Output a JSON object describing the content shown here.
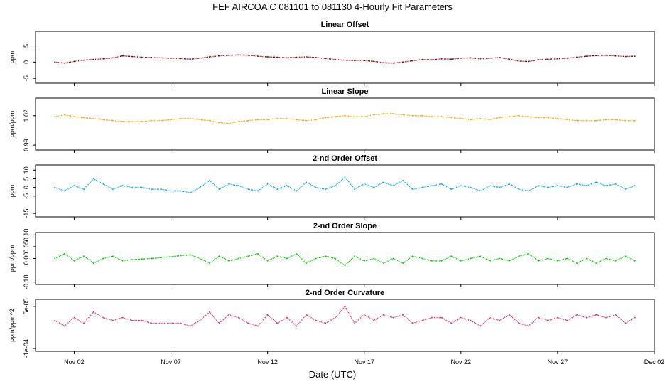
{
  "main_title": "FEF   AIRCOA C   081101 to 081130   4-Hourly Fit Parameters",
  "xlabel": "Date (UTC)",
  "x_ticks": [
    {
      "day": 2,
      "label": "Nov 02"
    },
    {
      "day": 7,
      "label": "Nov 07"
    },
    {
      "day": 12,
      "label": "Nov 12"
    },
    {
      "day": 17,
      "label": "Nov 17"
    },
    {
      "day": 22,
      "label": "Nov 22"
    },
    {
      "day": 27,
      "label": "Nov 27"
    },
    {
      "day": 32,
      "label": "Dec 02"
    }
  ],
  "chart_data": [
    {
      "type": "line",
      "title": "Linear Offset",
      "ylabel": "ppm",
      "color": "#8b0000",
      "xlim": [
        "2008-10-31",
        "2008-12-02"
      ],
      "ylim": [
        -6.5,
        9.5
      ],
      "yticks": [
        {
          "v": -5,
          "label": "-5"
        },
        {
          "v": 0,
          "label": "0"
        },
        {
          "v": 5,
          "label": "5"
        }
      ],
      "x": [
        1,
        1.5,
        2,
        2.5,
        3,
        3.5,
        4,
        4.5,
        5,
        5.5,
        6,
        6.5,
        7,
        7.5,
        8,
        8.5,
        9,
        9.5,
        10,
        10.5,
        11,
        11.5,
        12,
        12.5,
        13,
        13.5,
        14,
        14.5,
        15,
        15.5,
        16,
        16.5,
        17,
        17.5,
        18,
        18.5,
        19,
        19.5,
        20,
        20.5,
        21,
        21.5,
        22,
        22.5,
        23,
        23.5,
        24,
        24.5,
        25,
        25.5,
        26,
        26.5,
        27,
        27.5,
        28,
        28.5,
        29,
        29.5,
        30,
        30.5,
        31
      ],
      "values": [
        0.0,
        -0.3,
        0.2,
        0.6,
        0.8,
        1.0,
        1.3,
        1.9,
        1.7,
        1.5,
        1.4,
        1.3,
        1.2,
        1.1,
        0.9,
        1.2,
        1.6,
        1.9,
        2.1,
        2.2,
        2.1,
        1.8,
        1.6,
        1.5,
        1.3,
        1.5,
        1.6,
        1.4,
        1.1,
        0.8,
        0.6,
        0.5,
        0.5,
        0.2,
        -0.2,
        -0.3,
        0.0,
        0.4,
        0.8,
        0.7,
        1.0,
        0.9,
        1.2,
        1.3,
        1.0,
        1.2,
        1.4,
        0.9,
        0.3,
        0.2,
        0.7,
        0.9,
        1.0,
        1.2,
        1.5,
        1.8,
        2.0,
        2.1,
        1.9,
        1.7,
        1.8
      ]
    },
    {
      "type": "line",
      "title": "Linear Slope",
      "ylabel": "ppm/ppm",
      "color": "#ffa500",
      "xlim": [
        "2008-10-31",
        "2008-12-02"
      ],
      "ylim": [
        0.985,
        1.038
      ],
      "yticks": [
        {
          "v": 0.99,
          "label": "0.99"
        },
        {
          "v": 1.02,
          "label": "1.02"
        }
      ],
      "x": [
        1,
        1.5,
        2,
        2.5,
        3,
        3.5,
        4,
        4.5,
        5,
        5.5,
        6,
        6.5,
        7,
        7.5,
        8,
        8.5,
        9,
        9.5,
        10,
        10.5,
        11,
        11.5,
        12,
        12.5,
        13,
        13.5,
        14,
        14.5,
        15,
        15.5,
        16,
        16.5,
        17,
        17.5,
        18,
        18.5,
        19,
        19.5,
        20,
        20.5,
        21,
        21.5,
        22,
        22.5,
        23,
        23.5,
        24,
        24.5,
        25,
        25.5,
        26,
        26.5,
        27,
        27.5,
        28,
        28.5,
        29,
        29.5,
        30,
        30.5,
        31
      ],
      "values": [
        1.019,
        1.021,
        1.019,
        1.018,
        1.017,
        1.016,
        1.015,
        1.014,
        1.014,
        1.014,
        1.015,
        1.015,
        1.016,
        1.017,
        1.017,
        1.016,
        1.015,
        1.013,
        1.012,
        1.014,
        1.015,
        1.016,
        1.016,
        1.017,
        1.017,
        1.016,
        1.015,
        1.016,
        1.018,
        1.019,
        1.02,
        1.019,
        1.019,
        1.021,
        1.022,
        1.022,
        1.021,
        1.02,
        1.02,
        1.019,
        1.019,
        1.018,
        1.017,
        1.016,
        1.017,
        1.016,
        1.018,
        1.019,
        1.02,
        1.019,
        1.018,
        1.018,
        1.017,
        1.016,
        1.015,
        1.015,
        1.015,
        1.016,
        1.016,
        1.015,
        1.015
      ]
    },
    {
      "type": "line",
      "title": "2-nd Order Offset",
      "ylabel": "ppm",
      "color": "#00aaee",
      "xlim": [
        "2008-10-31",
        "2008-12-02"
      ],
      "ylim": [
        -17,
        13
      ],
      "yticks": [
        {
          "v": -15,
          "label": "-15"
        },
        {
          "v": -5,
          "label": "-5"
        },
        {
          "v": 0,
          "label": "0"
        },
        {
          "v": 5,
          "label": "5"
        },
        {
          "v": 10,
          "label": "10"
        }
      ],
      "x": [
        1,
        1.5,
        2,
        2.5,
        3,
        3.5,
        4,
        4.5,
        5,
        5.5,
        6,
        6.5,
        7,
        7.5,
        8,
        8.5,
        9,
        9.5,
        10,
        10.5,
        11,
        11.5,
        12,
        12.5,
        13,
        13.5,
        14,
        14.5,
        15,
        15.5,
        16,
        16.5,
        17,
        17.5,
        18,
        18.5,
        19,
        19.5,
        20,
        20.5,
        21,
        21.5,
        22,
        22.5,
        23,
        23.5,
        24,
        24.5,
        25,
        25.5,
        26,
        26.5,
        27,
        27.5,
        28,
        28.5,
        29,
        29.5,
        30,
        30.5,
        31
      ],
      "values": [
        0,
        -2,
        1,
        -1,
        5,
        2,
        -1,
        1,
        0,
        0,
        -1,
        -1,
        -2,
        -2,
        -3,
        0,
        4,
        -1,
        2,
        1,
        -1,
        -2,
        2,
        -1,
        1,
        -2,
        3,
        0,
        -1,
        1,
        6,
        -1,
        2,
        0,
        3,
        1,
        4,
        -1,
        0,
        1,
        2,
        -1,
        1,
        0,
        -2,
        1,
        0,
        2,
        -1,
        -2,
        1,
        0,
        1,
        0,
        2,
        1,
        3,
        1,
        2,
        -1,
        1
      ]
    },
    {
      "type": "line",
      "title": "2-nd Order Slope",
      "ylabel": "ppm/ppm",
      "color": "#00cc00",
      "xlim": [
        "2008-10-31",
        "2008-12-02"
      ],
      "ylim": [
        -0.11,
        0.11
      ],
      "yticks": [
        {
          "v": -0.1,
          "label": "-0.10"
        },
        {
          "v": 0.0,
          "label": "0.00"
        },
        {
          "v": 0.05,
          "label": "0.05"
        },
        {
          "v": 0.1,
          "label": "0.10"
        }
      ],
      "x": [
        1,
        1.5,
        2,
        2.5,
        3,
        3.5,
        4,
        4.5,
        5,
        5.5,
        6,
        6.5,
        7,
        7.5,
        8,
        8.5,
        9,
        9.5,
        10,
        10.5,
        11,
        11.5,
        12,
        12.5,
        13,
        13.5,
        14,
        14.5,
        15,
        15.5,
        16,
        16.5,
        17,
        17.5,
        18,
        18.5,
        19,
        19.5,
        20,
        20.5,
        21,
        21.5,
        22,
        22.5,
        23,
        23.5,
        24,
        24.5,
        25,
        25.5,
        26,
        26.5,
        27,
        27.5,
        28,
        28.5,
        29,
        29.5,
        30,
        30.5,
        31
      ],
      "values": [
        0.0,
        0.02,
        -0.01,
        0.01,
        -0.02,
        0.0,
        0.01,
        -0.01,
        -0.005,
        -0.002,
        0.0,
        0.004,
        0.008,
        0.012,
        0.016,
        0.0,
        -0.02,
        0.01,
        -0.01,
        0.0,
        0.01,
        0.02,
        -0.01,
        0.01,
        0.0,
        0.02,
        -0.02,
        0.0,
        0.01,
        0.0,
        -0.03,
        0.01,
        -0.01,
        0.0,
        -0.02,
        0.0,
        -0.02,
        0.01,
        0.0,
        -0.01,
        -0.01,
        0.01,
        -0.01,
        0.0,
        0.01,
        -0.01,
        0.0,
        -0.01,
        0.01,
        0.02,
        -0.01,
        0.0,
        -0.01,
        0.0,
        -0.02,
        0.0,
        -0.02,
        0.0,
        -0.01,
        0.01,
        -0.01
      ]
    },
    {
      "type": "line",
      "title": "2-nd Order Curvature",
      "ylabel": "ppm/ppm^2",
      "color": "#e0306a",
      "xlim": [
        "2008-10-31",
        "2008-12-02"
      ],
      "ylim": [
        -0.00011,
        7.5e-05
      ],
      "yticks": [
        {
          "v": -0.0001,
          "label": "-1e-04"
        },
        {
          "v": 5e-05,
          "label": "5e-05"
        }
      ],
      "x": [
        1,
        1.5,
        2,
        2.5,
        3,
        3.5,
        4,
        4.5,
        5,
        5.5,
        6,
        6.5,
        7,
        7.5,
        8,
        8.5,
        9,
        9.5,
        10,
        10.5,
        11,
        11.5,
        12,
        12.5,
        13,
        13.5,
        14,
        14.5,
        15,
        15.5,
        16,
        16.5,
        17,
        17.5,
        18,
        18.5,
        19,
        19.5,
        20,
        20.5,
        21,
        21.5,
        22,
        22.5,
        23,
        23.5,
        24,
        24.5,
        25,
        25.5,
        26,
        26.5,
        27,
        27.5,
        28,
        28.5,
        29,
        29.5,
        30,
        30.5,
        31
      ],
      "values": [
        0.0,
        -2e-05,
        1e-05,
        -1e-05,
        3e-05,
        1e-05,
        0.0,
        1e-05,
        0.0,
        0.0,
        -1e-05,
        -1e-05,
        -1e-05,
        -1e-05,
        -2e-05,
        0.0,
        3e-05,
        -1e-05,
        2e-05,
        1e-05,
        -1e-05,
        -2e-05,
        2e-05,
        -1e-05,
        1e-05,
        -2e-05,
        2e-05,
        0.0,
        -1e-05,
        1e-05,
        5e-05,
        -1e-05,
        2e-05,
        0.0,
        2e-05,
        1e-05,
        2e-05,
        -1e-05,
        0.0,
        1e-05,
        1e-05,
        -1e-05,
        1e-05,
        0.0,
        -2e-05,
        1e-05,
        0.0,
        2e-05,
        -1e-05,
        -2e-05,
        1e-05,
        0.0,
        1e-05,
        0.0,
        2e-05,
        1e-05,
        2e-05,
        1e-05,
        2e-05,
        -1e-05,
        1e-05
      ]
    }
  ]
}
